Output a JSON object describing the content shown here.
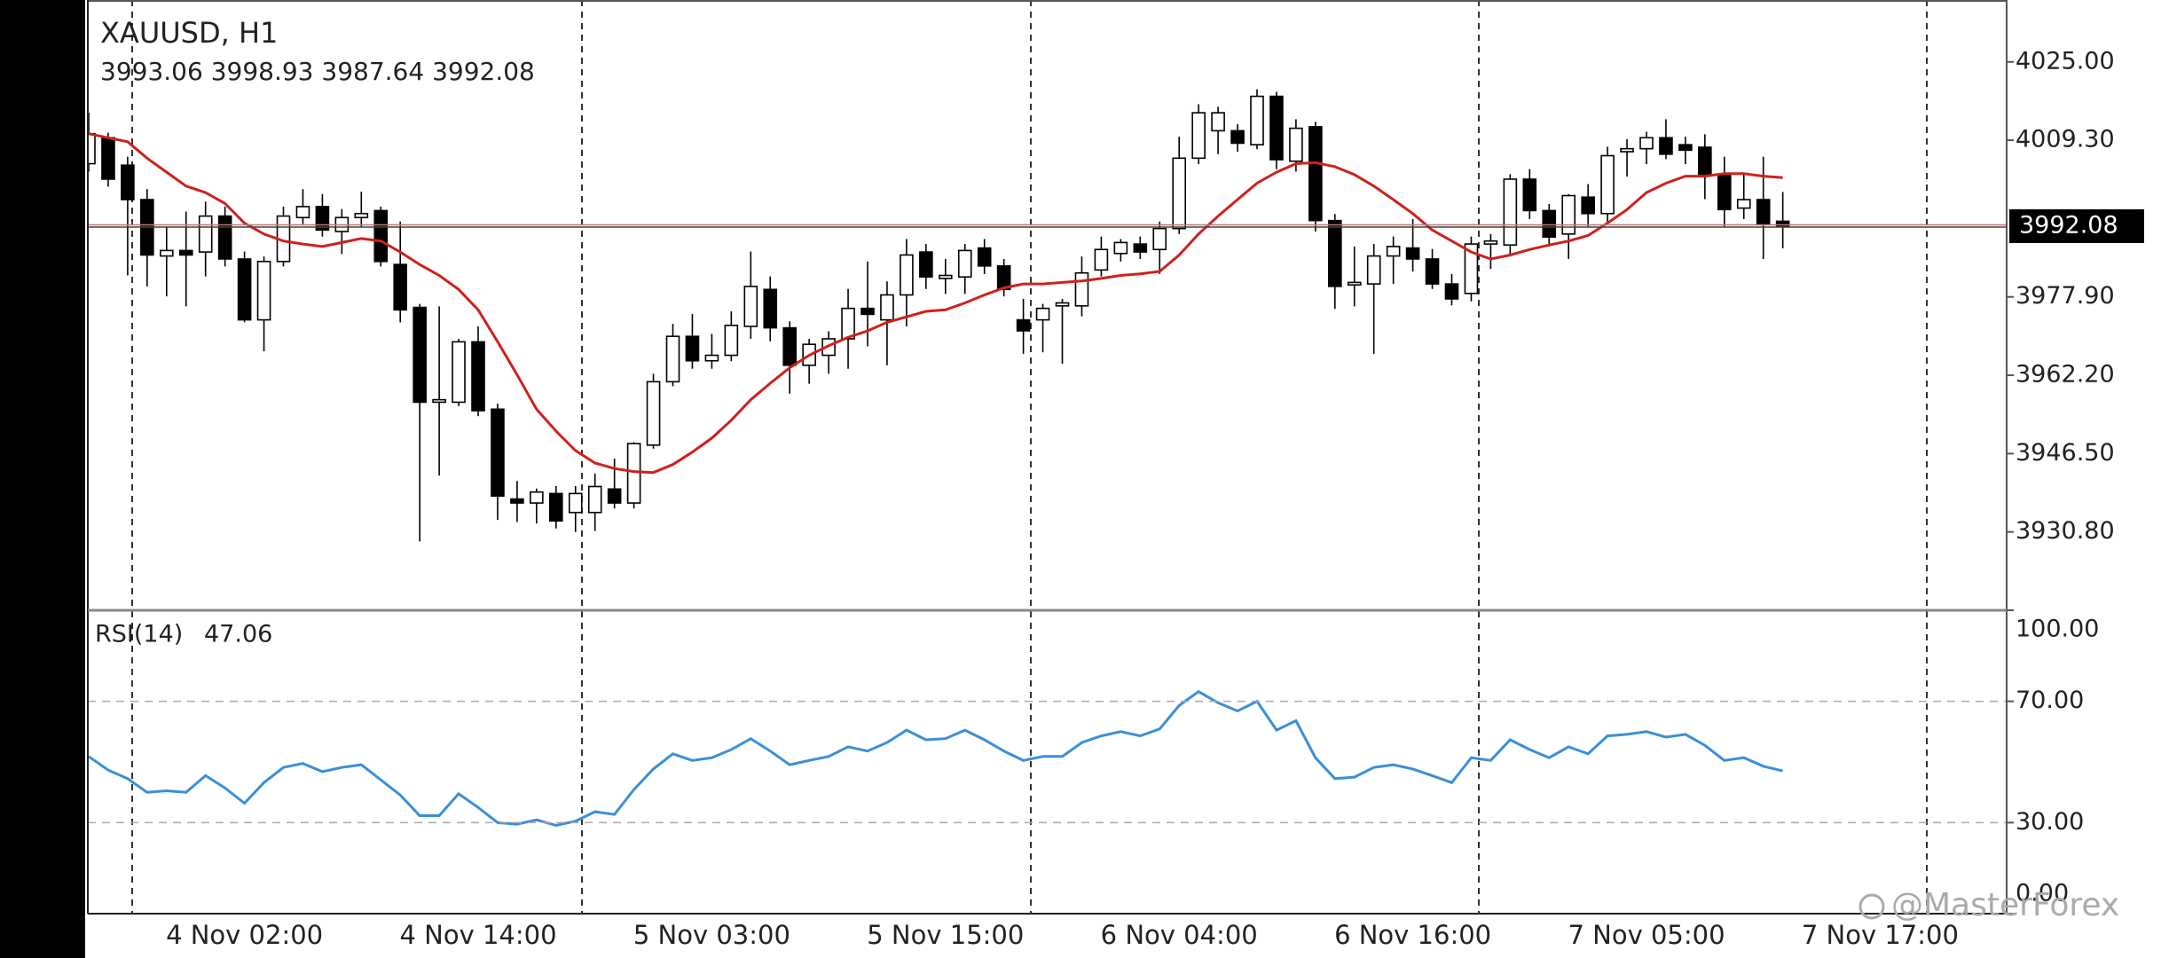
{
  "chart_data": [
    {
      "type": "candlestick",
      "title": "XAUUSD, H1",
      "subtitle": "3993.06 3998.93 3987.64 3992.08",
      "categories": [
        null,
        null,
        null,
        null,
        null,
        null,
        null,
        null,
        "4 Nov 02:00",
        null,
        null,
        null,
        null,
        null,
        null,
        null,
        null,
        null,
        null,
        null,
        "4 Nov 14:00",
        null,
        null,
        null,
        null,
        null,
        null,
        null,
        null,
        null,
        null,
        null,
        "5 Nov 03:00",
        null,
        null,
        null,
        null,
        null,
        null,
        null,
        null,
        null,
        null,
        null,
        "5 Nov 15:00",
        null,
        null,
        null,
        null,
        null,
        null,
        null,
        null,
        null,
        null,
        null,
        "6 Nov 04:00",
        null,
        null,
        null,
        null,
        null,
        null,
        null,
        null,
        null,
        null,
        null,
        "6 Nov 16:00",
        null,
        null,
        null,
        null,
        null,
        null,
        null,
        null,
        null,
        null,
        null,
        "7 Nov 05:00",
        null,
        null,
        null,
        null,
        null,
        null,
        null,
        null,
        null,
        null,
        null,
        "7 Nov 17:00"
      ],
      "open": [
        4004.6,
        4009.8,
        4004.3,
        3997.4,
        3986.1,
        3987.2,
        3986.9,
        3994.1,
        3985.5,
        3973.3,
        3985.0,
        3993.8,
        3996.0,
        3991.0,
        3993.8,
        3995.2,
        3984.4,
        3975.8,
        3956.8,
        3956.8,
        3968.9,
        3955.4,
        3937.4,
        3936.6,
        3938.5,
        3934.7,
        3934.7,
        3939.4,
        3936.6,
        3948.2,
        3960.9,
        3970.0,
        3965.1,
        3966.2,
        3972.0,
        3979.4,
        3971.7,
        3964.2,
        3966.2,
        3969.5,
        3975.6,
        3973.3,
        3978.3,
        3986.9,
        3981.6,
        3981.9,
        3987.7,
        3984.1,
        3973.3,
        3973.3,
        3976.1,
        3976.1,
        3983.3,
        3986.6,
        3988.5,
        3987.4,
        3991.6,
        4005.7,
        4011.2,
        4011.2,
        4008.4,
        4018.1,
        4005.1,
        4012.0,
        3993.2,
        3980.3,
        3980.5,
        3986.1,
        3987.7,
        3985.5,
        3980.5,
        3978.6,
        3988.5,
        3988.3,
        4001.5,
        3995.2,
        3990.5,
        3997.9,
        3994.6,
        4007.0,
        4007.6,
        4009.8,
        4008.4,
        4007.9,
        4002.4,
        3995.7,
        3997.4,
        3993.06,
        null,
        null,
        null,
        null,
        null
      ],
      "high": [
        4014.8,
        4010.8,
        4006.0,
        3999.5,
        3992.0,
        3995.0,
        3997.0,
        3996.0,
        3987.0,
        3986.0,
        3996.0,
        3999.5,
        3998.5,
        3995.5,
        3999.0,
        3996.0,
        3993.0,
        3976.5,
        3976.0,
        3969.5,
        3972.0,
        3956.5,
        3941.0,
        3939.5,
        3940.0,
        3940.0,
        3942.5,
        3945.5,
        3948.8,
        3962.5,
        3972.5,
        3974.5,
        3970.5,
        3975.0,
        3987.0,
        3982.0,
        3973.0,
        3969.5,
        3971.0,
        3979.5,
        3985.0,
        3981.0,
        3989.5,
        3988.5,
        3985.5,
        3988.5,
        3989.5,
        3985.5,
        3977.5,
        3976.5,
        3977.5,
        3986.0,
        3990.0,
        3989.5,
        3990.0,
        3993.0,
        4010.0,
        4016.5,
        4016.0,
        4012.5,
        4019.5,
        4019.0,
        4013.5,
        4013.0,
        3994.5,
        3988.0,
        3988.5,
        3990.0,
        3993.5,
        3987.5,
        3982.5,
        3990.0,
        3990.5,
        4002.5,
        4003.5,
        3996.5,
        3998.5,
        4000.5,
        4008.0,
        4009.5,
        4011.0,
        4013.5,
        4010.0,
        4010.5,
        4006.0,
        4002.5,
        4006.0,
        3998.93,
        null,
        null,
        null,
        null,
        null
      ],
      "low": [
        4003.0,
        4000.0,
        3982.2,
        3980.0,
        3978.0,
        3976.0,
        3982.0,
        3984.0,
        3972.8,
        3967.0,
        3984.0,
        3992.5,
        3990.0,
        3986.5,
        3992.0,
        3984.0,
        3972.8,
        3928.9,
        3942.1,
        3956.0,
        3954.0,
        3933.2,
        3932.8,
        3932.5,
        3931.5,
        3930.8,
        3931.0,
        3935.5,
        3935.5,
        3947.5,
        3960.0,
        3963.5,
        3963.5,
        3965.0,
        3969.5,
        3969.0,
        3958.5,
        3960.5,
        3962.5,
        3963.5,
        3968.0,
        3964.2,
        3972.0,
        3979.5,
        3978.5,
        3978.5,
        3982.5,
        3978.0,
        3966.5,
        3966.8,
        3964.5,
        3974.0,
        3982.0,
        3985.0,
        3985.5,
        3982.5,
        3990.5,
        4004.5,
        4006.5,
        4007.0,
        4007.5,
        4003.5,
        4003.0,
        3991.0,
        3975.5,
        3976.0,
        3966.5,
        3980.5,
        3983.0,
        3979.5,
        3976.2,
        3977.0,
        3983.5,
        3986.0,
        3993.5,
        3988.0,
        3985.5,
        3992.0,
        3992.5,
        4002.0,
        4004.5,
        4005.5,
        4004.5,
        3997.5,
        3992.0,
        3993.5,
        3985.5,
        3987.64,
        null,
        null,
        null,
        null,
        null
      ],
      "close": [
        4010.6,
        4001.5,
        3997.4,
        3986.3,
        3987.2,
        3986.3,
        3994.1,
        3985.5,
        3973.3,
        3985.0,
        3994.1,
        3996.0,
        3991.3,
        3993.8,
        3994.6,
        3985.0,
        3975.3,
        3956.8,
        3957.3,
        3968.9,
        3955.1,
        3938.0,
        3936.6,
        3938.8,
        3933.0,
        3938.5,
        3939.9,
        3936.6,
        3948.5,
        3960.9,
        3970.0,
        3965.1,
        3966.2,
        3972.2,
        3980.0,
        3971.7,
        3964.2,
        3968.4,
        3969.5,
        3975.6,
        3974.4,
        3978.3,
        3986.3,
        3981.9,
        3982.2,
        3987.2,
        3984.1,
        3979.4,
        3971.1,
        3975.6,
        3976.7,
        3982.7,
        3987.4,
        3988.8,
        3986.9,
        3991.6,
        4005.7,
        4014.8,
        4014.8,
        4008.7,
        4018.1,
        4005.4,
        4011.7,
        3993.2,
        3980.0,
        3980.8,
        3986.1,
        3988.0,
        3985.5,
        3980.5,
        3977.5,
        3988.5,
        3989.1,
        4001.5,
        3995.2,
        3989.9,
        3998.2,
        3994.6,
        4006.2,
        4007.6,
        4009.8,
        4006.5,
        4007.3,
        4002.4,
        3995.4,
        3997.4,
        3992.4,
        3992.08,
        null,
        null,
        null,
        null,
        null
      ],
      "up_color": "#ffffff",
      "down_color": "#000000",
      "overlay": {
        "color": "#d0201c",
        "values": [
          4010.6,
          4009.8,
          4009.0,
          4005.7,
          4002.9,
          4000.1,
          3998.8,
          3996.6,
          3992.7,
          3990.5,
          3989.1,
          3988.5,
          3988.0,
          3988.8,
          3989.6,
          3989.1,
          3986.9,
          3984.4,
          3982.2,
          3979.4,
          3975.3,
          3968.9,
          3962.3,
          3955.4,
          3951.0,
          3947.1,
          3944.6,
          3943.5,
          3942.9,
          3942.7,
          3944.3,
          3946.8,
          3949.6,
          3953.2,
          3957.3,
          3960.6,
          3963.7,
          3966.2,
          3968.1,
          3969.8,
          3971.1,
          3972.8,
          3973.9,
          3975.0,
          3975.3,
          3976.7,
          3978.3,
          3979.7,
          3980.5,
          3980.5,
          3980.8,
          3981.1,
          3981.6,
          3982.2,
          3982.5,
          3983.0,
          3986.3,
          3990.5,
          3994.1,
          3997.4,
          4000.7,
          4002.9,
          4004.6,
          4004.8,
          4004.0,
          4002.4,
          4000.1,
          3997.4,
          3994.6,
          3991.3,
          3989.1,
          3986.9,
          3985.5,
          3986.3,
          3987.4,
          3988.3,
          3989.1,
          3990.2,
          3992.7,
          3995.4,
          3998.8,
          4000.7,
          4002.1,
          4002.1,
          4002.6,
          4002.6,
          4002.1,
          4001.8,
          null,
          null,
          null,
          null,
          null
        ]
      },
      "last_price": 3992.08,
      "ylim": [
        3915.1,
        4037.4
      ],
      "yticks": [
        {
          "value": 4025.0,
          "label": "4025.00"
        },
        {
          "value": 4009.3,
          "label": "4009.30"
        },
        {
          "value": 3977.9,
          "label": "3977.90"
        },
        {
          "value": 3962.2,
          "label": "3962.20"
        },
        {
          "value": 3946.5,
          "label": "3946.50"
        },
        {
          "value": 3930.8,
          "label": "3930.80"
        }
      ]
    },
    {
      "type": "line",
      "title": "RSI(14)",
      "current": 47.06,
      "color": "#3a8fd8",
      "values": [
        51.8,
        47.3,
        44.5,
        40.0,
        40.5,
        40.0,
        45.5,
        41.4,
        36.4,
        43.2,
        48.2,
        49.5,
        46.8,
        48.2,
        49.1,
        44.1,
        39.1,
        32.3,
        32.3,
        39.5,
        35.0,
        30.0,
        29.5,
        30.9,
        29.1,
        30.5,
        33.6,
        32.7,
        40.9,
        47.7,
        52.7,
        50.5,
        51.4,
        54.1,
        57.7,
        53.6,
        49.1,
        50.5,
        51.8,
        55.0,
        53.6,
        56.4,
        60.5,
        57.3,
        57.7,
        60.5,
        57.3,
        53.6,
        50.5,
        51.8,
        51.8,
        56.4,
        58.6,
        60.0,
        58.6,
        60.9,
        68.6,
        73.2,
        69.5,
        66.8,
        70.0,
        60.5,
        63.6,
        51.4,
        44.5,
        45.0,
        48.2,
        49.1,
        47.7,
        45.5,
        43.2,
        51.4,
        50.5,
        57.3,
        54.1,
        51.4,
        55.0,
        52.7,
        58.6,
        59.1,
        60.0,
        58.2,
        59.1,
        55.5,
        50.5,
        51.4,
        48.6,
        47.06,
        null,
        null,
        null,
        null,
        null
      ],
      "ylim": [
        0,
        100
      ],
      "yticks": [
        {
          "value": 100,
          "label": "100.00"
        },
        {
          "value": 70,
          "label": "70.00"
        },
        {
          "value": 30,
          "label": "30.00"
        },
        {
          "value": 0,
          "label": "0.00"
        }
      ],
      "grid": true
    }
  ],
  "watermark": "@MasterForex"
}
